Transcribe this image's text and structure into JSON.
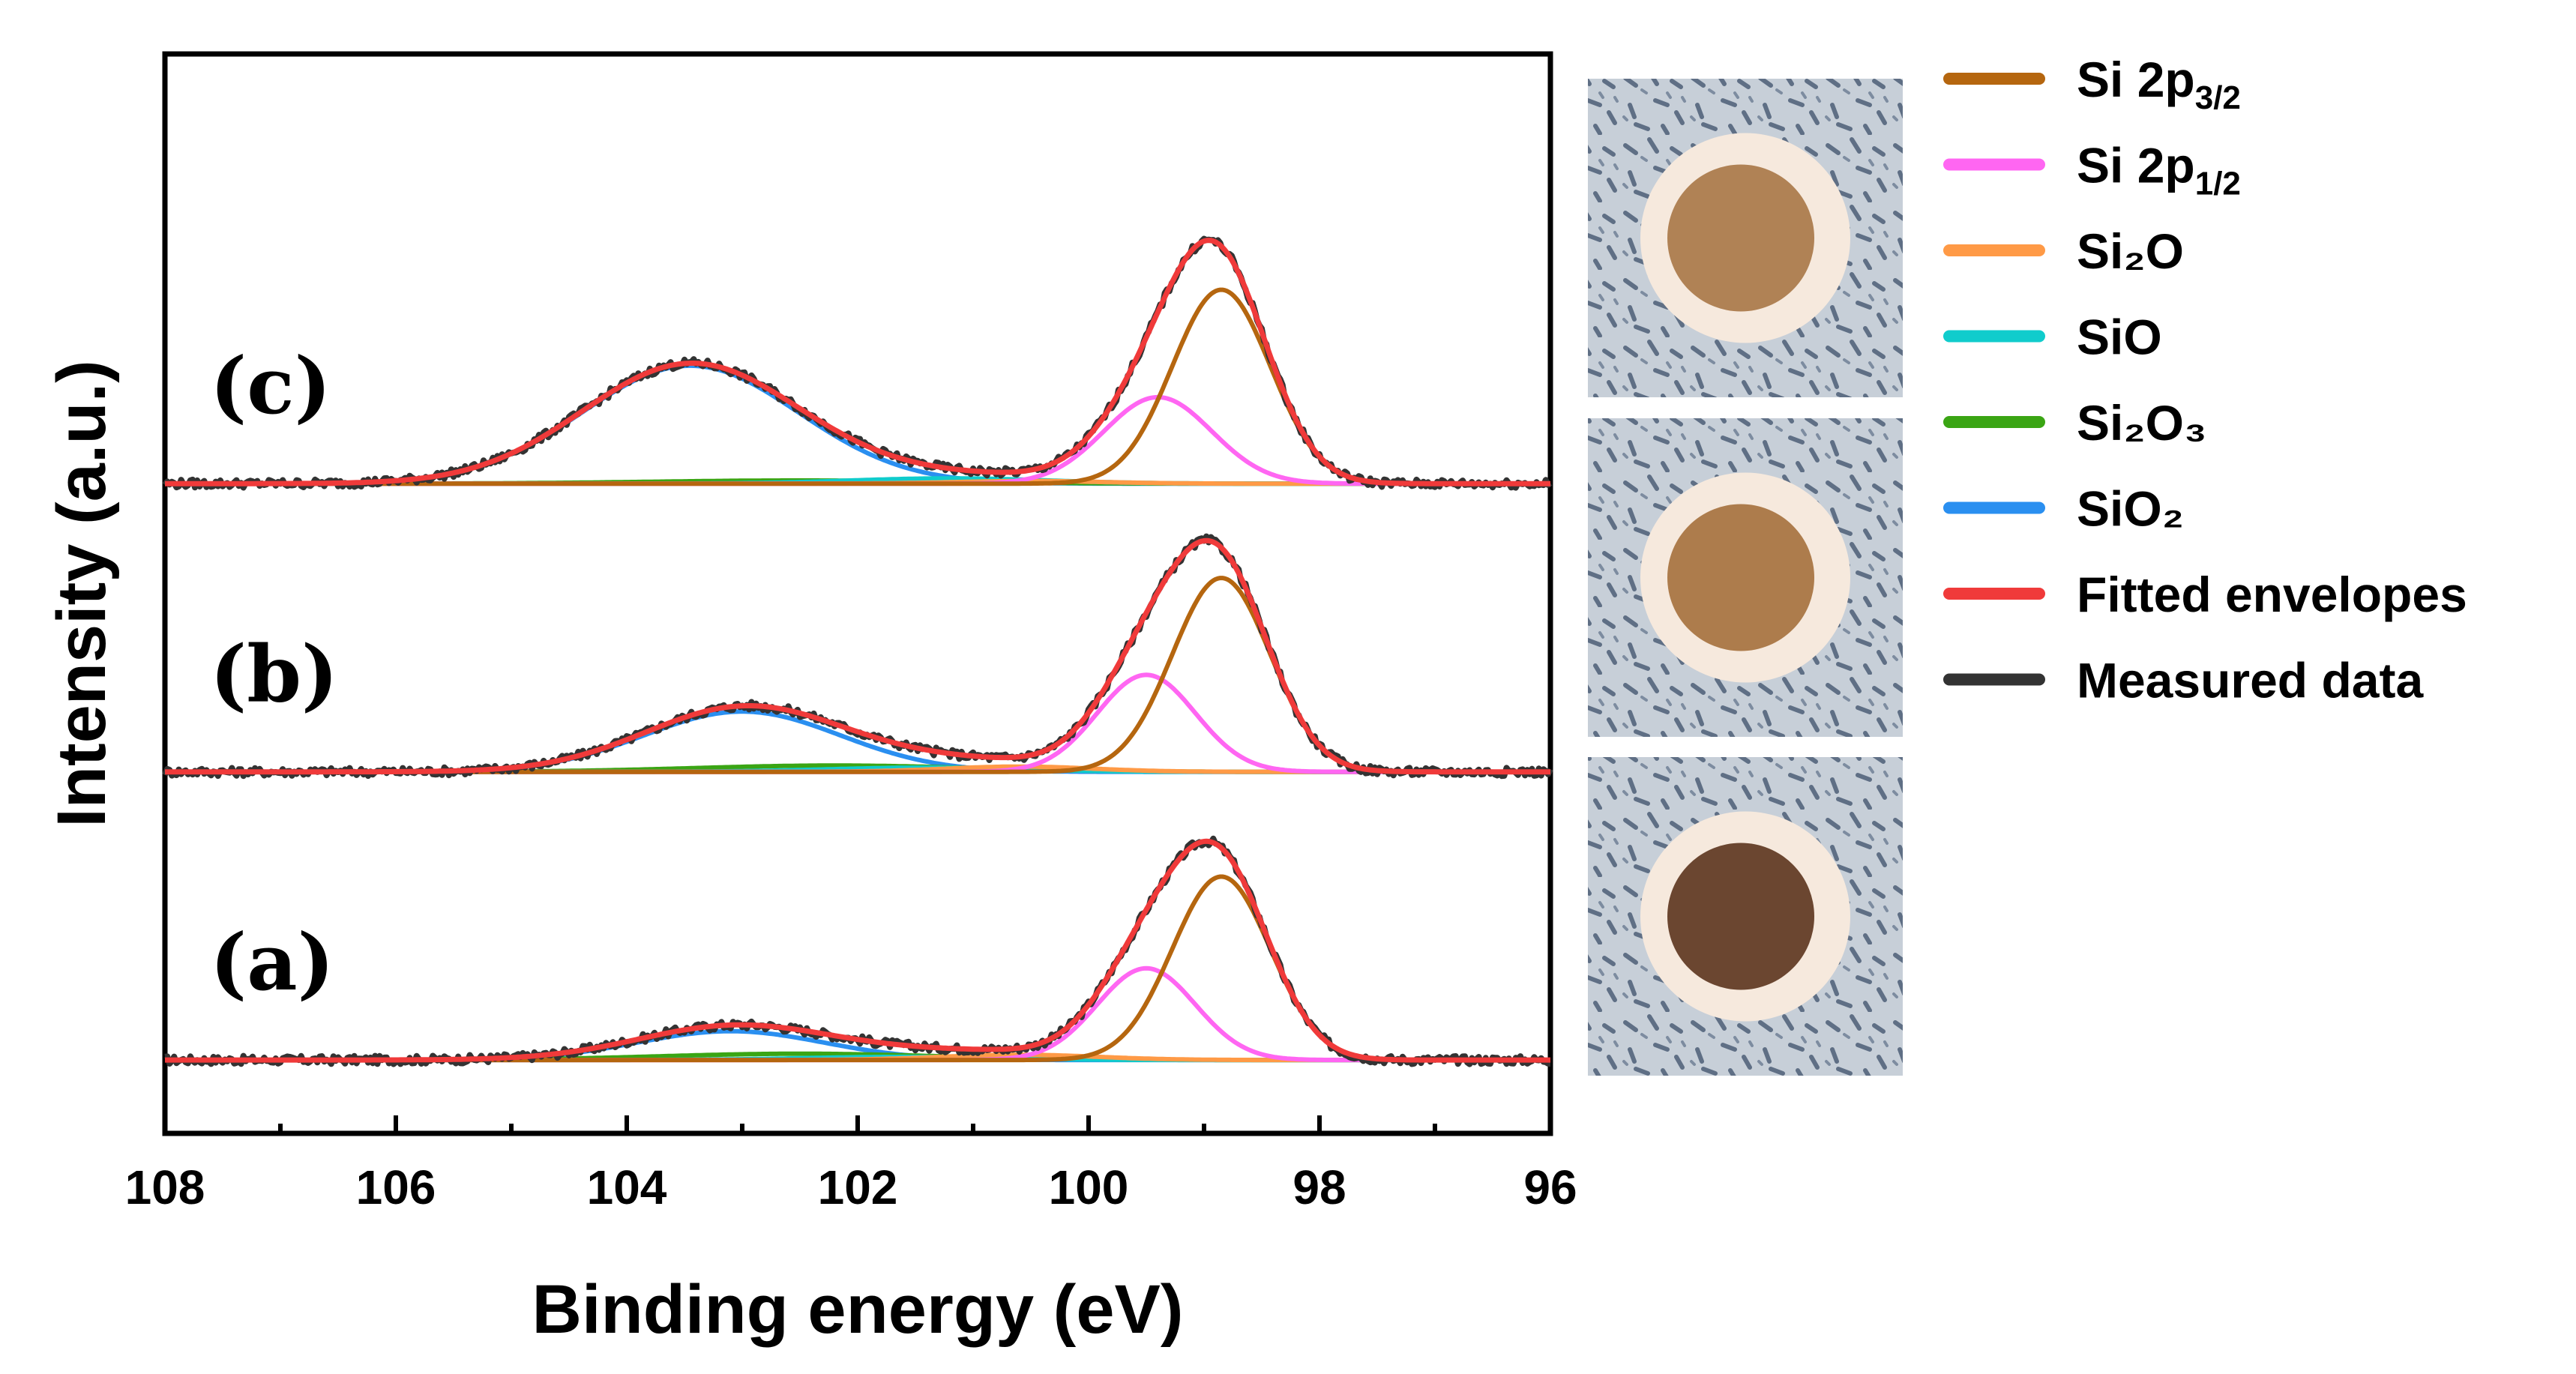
{
  "chart_data": {
    "type": "line",
    "title": "",
    "xlabel": "Binding energy (eV)",
    "ylabel": "Intensity (a.u.)",
    "xlim": [
      108,
      96
    ],
    "x_reversed": true,
    "xticks": [
      108,
      106,
      104,
      102,
      100,
      98,
      96
    ],
    "ylim": [
      -1.4,
      19.2
    ],
    "y_ticks_shown": false,
    "legend_position": "right, outside plot",
    "legend": [
      {
        "key": "si_2p32",
        "base": "Si 2p",
        "sub": "3/2",
        "color": "#b5660f"
      },
      {
        "key": "si_2p12",
        "base": "Si 2p",
        "sub": "1/2",
        "color": "#ff66f2"
      },
      {
        "key": "si2o",
        "label": "Si₂O",
        "color": "#ff9a46"
      },
      {
        "key": "sio",
        "label": "SiO",
        "color": "#10cccc"
      },
      {
        "key": "si2o3",
        "label": "Si₂O₃",
        "color": "#3aa514"
      },
      {
        "key": "sio2",
        "label": "SiO₂",
        "color": "#2a8ff0"
      },
      {
        "key": "fit",
        "label": "Fitted envelopes",
        "color": "#f03a3a"
      },
      {
        "key": "data",
        "label": "Measured data",
        "color": "#333333"
      }
    ],
    "panels": [
      {
        "label": "(a)",
        "offset": 0,
        "components": [
          {
            "name": "SiO2",
            "center": 103.1,
            "fwhm": 1.9,
            "height": 0.55
          },
          {
            "name": "Si2O3",
            "center": 102.5,
            "fwhm": 2.8,
            "height": 0.12
          },
          {
            "name": "SiO",
            "center": 101.6,
            "fwhm": 2.0,
            "height": 0.06
          },
          {
            "name": "Si2O",
            "center": 100.6,
            "fwhm": 1.6,
            "height": 0.1
          },
          {
            "name": "Si 2p1/2",
            "center": 99.5,
            "fwhm": 1.0,
            "height": 1.75
          },
          {
            "name": "Si 2p3/2",
            "center": 98.85,
            "fwhm": 1.0,
            "height": 3.5
          }
        ]
      },
      {
        "label": "(b)",
        "offset": 5.5,
        "components": [
          {
            "name": "SiO2",
            "center": 103.0,
            "fwhm": 2.0,
            "height": 1.15
          },
          {
            "name": "Si2O3",
            "center": 102.2,
            "fwhm": 2.8,
            "height": 0.12
          },
          {
            "name": "SiO",
            "center": 101.4,
            "fwhm": 2.0,
            "height": 0.08
          },
          {
            "name": "Si2O",
            "center": 100.6,
            "fwhm": 1.5,
            "height": 0.1
          },
          {
            "name": "Si 2p1/2",
            "center": 99.5,
            "fwhm": 1.0,
            "height": 1.85
          },
          {
            "name": "Si 2p3/2",
            "center": 98.85,
            "fwhm": 1.0,
            "height": 3.7
          }
        ]
      },
      {
        "label": "(c)",
        "offset": 11.0,
        "components": [
          {
            "name": "SiO2",
            "center": 103.45,
            "fwhm": 2.2,
            "height": 2.25
          },
          {
            "name": "Si2O3",
            "center": 102.5,
            "fwhm": 3.0,
            "height": 0.06
          },
          {
            "name": "SiO",
            "center": 101.2,
            "fwhm": 2.0,
            "height": 0.1
          },
          {
            "name": "Si2O",
            "center": 100.5,
            "fwhm": 1.5,
            "height": 0.05
          },
          {
            "name": "Si 2p1/2",
            "center": 99.4,
            "fwhm": 1.1,
            "height": 1.65
          },
          {
            "name": "Si 2p3/2",
            "center": 98.85,
            "fwhm": 1.0,
            "height": 3.7
          }
        ]
      }
    ]
  },
  "sample_photos": [
    {
      "name": "sample-photo-c",
      "panel": "(c)",
      "disc_color": "#b08255"
    },
    {
      "name": "sample-photo-b",
      "panel": "(b)",
      "disc_color": "#ad7c4c"
    },
    {
      "name": "sample-photo-a",
      "panel": "(a)",
      "disc_color": "#6b4630"
    }
  ]
}
